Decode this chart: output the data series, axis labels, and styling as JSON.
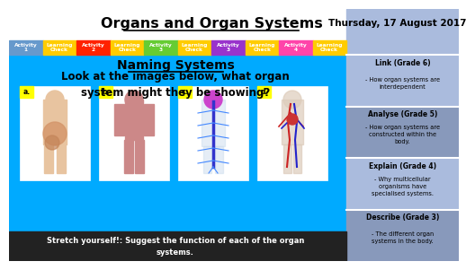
{
  "title": "Organs and Organ Systems",
  "date": "Thursday, 17 August 2017",
  "bg_color": "#00aaff",
  "header_bg": "#ffffff",
  "activity_bar": [
    {
      "label": "Activity\n1",
      "color": "#6699cc"
    },
    {
      "label": "Learning\nCheck",
      "color": "#ffcc00"
    },
    {
      "label": "Activity\n2",
      "color": "#ff2200"
    },
    {
      "label": "Learning\nCheck",
      "color": "#ffcc00"
    },
    {
      "label": "Activity\n3",
      "color": "#66cc33"
    },
    {
      "label": "Learning\nCheck",
      "color": "#ffcc00"
    },
    {
      "label": "Activity\n3",
      "color": "#9933cc"
    },
    {
      "label": "Learning\nCheck",
      "color": "#ffcc00"
    },
    {
      "label": "Activity\n4",
      "color": "#ff44aa"
    },
    {
      "label": "Learning\nCheck",
      "color": "#ffcc00"
    }
  ],
  "main_title": "Naming Systems",
  "question": "Look at the images below, what organ\nsystem might they be showing?",
  "image_labels": [
    "a.",
    "b.",
    "c.",
    "d."
  ],
  "label_bg": "#ffff00",
  "stretch_text": "Stretch yourself!: Suggest the function of each of the organ\nsystems.",
  "stretch_bg": "#222222",
  "stretch_fg": "#ffffff",
  "sidebar_items": [
    {
      "grade_label": "Link (Grade 6)",
      "detail": "- How organ systems are\ninterdependent",
      "bg": "#aabbdd"
    },
    {
      "grade_label": "Analyse (Grade 5)",
      "detail": "- How organ systems are\nconstructed within the\nbody.",
      "bg": "#8899cc"
    },
    {
      "grade_label": "Explain (Grade 4)",
      "detail": "- Why multicellular\norganisms have\nspecialised systems.",
      "bg": "#aabbdd"
    },
    {
      "grade_label": "Describe (Grade 3)",
      "detail": "- The different organ\nsystems in the body.",
      "bg": "#8899cc"
    }
  ]
}
